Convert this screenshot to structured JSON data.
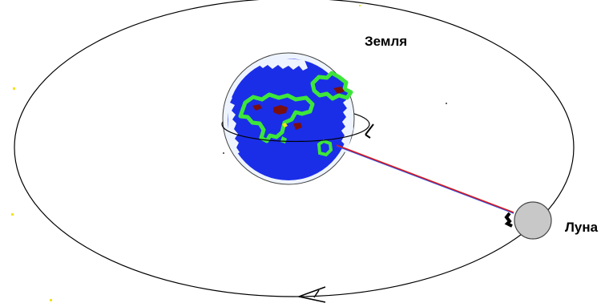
{
  "labels": {
    "earth": "Земля",
    "moon": "Луна"
  },
  "colors": {
    "background": "#ffffff",
    "ocean": "#1a2ee8",
    "land": "#3de63a",
    "mountains": "#7a0f10",
    "ice": "#eef4ff",
    "moon_fill": "#c8c8c8",
    "moon_stroke": "#444444",
    "line_red": "#d81818",
    "line_blue": "#2f49e0",
    "orbit": "#000000",
    "stars": "#f2e41a"
  },
  "icons": {
    "earth": "earth-globe-icon",
    "moon": "moon-icon",
    "orbit_arrow": "orbit-direction-arrow-icon"
  }
}
